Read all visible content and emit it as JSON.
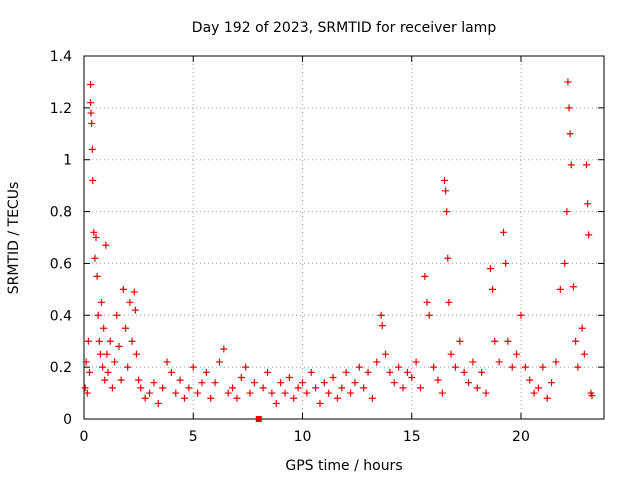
{
  "chart_data": {
    "type": "scatter",
    "title": "Day 192 of 2023, SRMTID for receiver lamp",
    "xlabel": "GPS time / hours",
    "ylabel": "SRMTID / TECUs",
    "xlim": [
      0,
      23.8
    ],
    "ylim": [
      0,
      1.4
    ],
    "x_ticks": [
      0,
      5,
      10,
      15,
      20
    ],
    "x_tick_labels": [
      "0",
      "5",
      "10",
      "15",
      "20"
    ],
    "y_ticks": [
      0,
      0.2,
      0.4,
      0.6,
      0.8,
      1.0,
      1.2,
      1.4
    ],
    "y_tick_labels": [
      "0",
      "0.2",
      "0.4",
      "0.6",
      "0.8",
      "1",
      "1.2",
      "1.4"
    ],
    "grid": true,
    "marker": "plus",
    "color": "#e60000",
    "series": [
      {
        "name": "SRMTID",
        "points": [
          [
            0.05,
            0.12
          ],
          [
            0.1,
            0.22
          ],
          [
            0.15,
            0.1
          ],
          [
            0.2,
            0.3
          ],
          [
            0.25,
            0.18
          ],
          [
            0.3,
            1.29
          ],
          [
            0.3,
            1.22
          ],
          [
            0.32,
            1.18
          ],
          [
            0.35,
            1.14
          ],
          [
            0.38,
            1.04
          ],
          [
            0.4,
            0.92
          ],
          [
            0.45,
            0.72
          ],
          [
            0.5,
            0.62
          ],
          [
            0.55,
            0.7
          ],
          [
            0.6,
            0.55
          ],
          [
            0.65,
            0.4
          ],
          [
            0.7,
            0.3
          ],
          [
            0.75,
            0.25
          ],
          [
            0.8,
            0.45
          ],
          [
            0.85,
            0.2
          ],
          [
            0.9,
            0.35
          ],
          [
            0.95,
            0.15
          ],
          [
            1.0,
            0.67
          ],
          [
            1.05,
            0.25
          ],
          [
            1.1,
            0.18
          ],
          [
            1.2,
            0.3
          ],
          [
            1.3,
            0.12
          ],
          [
            1.4,
            0.22
          ],
          [
            1.5,
            0.4
          ],
          [
            1.6,
            0.28
          ],
          [
            1.7,
            0.15
          ],
          [
            1.8,
            0.5
          ],
          [
            1.9,
            0.35
          ],
          [
            2.0,
            0.2
          ],
          [
            2.1,
            0.45
          ],
          [
            2.2,
            0.3
          ],
          [
            2.3,
            0.49
          ],
          [
            2.35,
            0.42
          ],
          [
            2.4,
            0.25
          ],
          [
            2.5,
            0.15
          ],
          [
            2.6,
            0.12
          ],
          [
            2.8,
            0.08
          ],
          [
            3.0,
            0.1
          ],
          [
            3.2,
            0.14
          ],
          [
            3.4,
            0.06
          ],
          [
            3.6,
            0.12
          ],
          [
            3.8,
            0.22
          ],
          [
            4.0,
            0.18
          ],
          [
            4.2,
            0.1
          ],
          [
            4.4,
            0.15
          ],
          [
            4.6,
            0.08
          ],
          [
            4.8,
            0.12
          ],
          [
            5.0,
            0.2
          ],
          [
            5.2,
            0.1
          ],
          [
            5.4,
            0.14
          ],
          [
            5.6,
            0.18
          ],
          [
            5.8,
            0.08
          ],
          [
            6.0,
            0.14
          ],
          [
            6.2,
            0.22
          ],
          [
            6.4,
            0.27
          ],
          [
            6.6,
            0.1
          ],
          [
            6.8,
            0.12
          ],
          [
            7.0,
            0.08
          ],
          [
            7.2,
            0.16
          ],
          [
            7.4,
            0.2
          ],
          [
            7.6,
            0.1
          ],
          [
            7.8,
            0.14
          ],
          [
            8.0,
            0.0
          ],
          [
            8.2,
            0.12
          ],
          [
            8.4,
            0.18
          ],
          [
            8.6,
            0.1
          ],
          [
            8.8,
            0.06
          ],
          [
            9.0,
            0.14
          ],
          [
            9.2,
            0.1
          ],
          [
            9.4,
            0.16
          ],
          [
            9.6,
            0.08
          ],
          [
            9.8,
            0.12
          ],
          [
            10.0,
            0.14
          ],
          [
            10.2,
            0.1
          ],
          [
            10.4,
            0.18
          ],
          [
            10.6,
            0.12
          ],
          [
            10.8,
            0.06
          ],
          [
            11.0,
            0.14
          ],
          [
            11.2,
            0.1
          ],
          [
            11.4,
            0.16
          ],
          [
            11.6,
            0.08
          ],
          [
            11.8,
            0.12
          ],
          [
            12.0,
            0.18
          ],
          [
            12.2,
            0.1
          ],
          [
            12.4,
            0.14
          ],
          [
            12.6,
            0.2
          ],
          [
            12.8,
            0.12
          ],
          [
            13.0,
            0.18
          ],
          [
            13.2,
            0.08
          ],
          [
            13.4,
            0.22
          ],
          [
            13.6,
            0.4
          ],
          [
            13.65,
            0.36
          ],
          [
            13.8,
            0.25
          ],
          [
            14.0,
            0.18
          ],
          [
            14.2,
            0.14
          ],
          [
            14.4,
            0.2
          ],
          [
            14.6,
            0.12
          ],
          [
            14.8,
            0.18
          ],
          [
            15.0,
            0.16
          ],
          [
            15.2,
            0.22
          ],
          [
            15.4,
            0.12
          ],
          [
            15.6,
            0.55
          ],
          [
            15.7,
            0.45
          ],
          [
            15.8,
            0.4
          ],
          [
            16.0,
            0.2
          ],
          [
            16.2,
            0.15
          ],
          [
            16.4,
            0.1
          ],
          [
            16.5,
            0.92
          ],
          [
            16.55,
            0.88
          ],
          [
            16.6,
            0.8
          ],
          [
            16.65,
            0.62
          ],
          [
            16.7,
            0.45
          ],
          [
            16.8,
            0.25
          ],
          [
            17.0,
            0.2
          ],
          [
            17.2,
            0.3
          ],
          [
            17.4,
            0.18
          ],
          [
            17.6,
            0.14
          ],
          [
            17.8,
            0.22
          ],
          [
            18.0,
            0.12
          ],
          [
            18.2,
            0.18
          ],
          [
            18.4,
            0.1
          ],
          [
            18.6,
            0.58
          ],
          [
            18.7,
            0.5
          ],
          [
            18.8,
            0.3
          ],
          [
            19.0,
            0.22
          ],
          [
            19.2,
            0.72
          ],
          [
            19.3,
            0.6
          ],
          [
            19.4,
            0.3
          ],
          [
            19.6,
            0.2
          ],
          [
            19.8,
            0.25
          ],
          [
            20.0,
            0.4
          ],
          [
            20.2,
            0.2
          ],
          [
            20.4,
            0.15
          ],
          [
            20.6,
            0.1
          ],
          [
            20.8,
            0.12
          ],
          [
            21.0,
            0.2
          ],
          [
            21.2,
            0.08
          ],
          [
            21.4,
            0.14
          ],
          [
            21.6,
            0.22
          ],
          [
            21.8,
            0.5
          ],
          [
            22.0,
            0.6
          ],
          [
            22.1,
            0.8
          ],
          [
            22.15,
            1.3
          ],
          [
            22.2,
            1.2
          ],
          [
            22.25,
            1.1
          ],
          [
            22.3,
            0.98
          ],
          [
            22.4,
            0.51
          ],
          [
            22.5,
            0.3
          ],
          [
            22.6,
            0.2
          ],
          [
            22.8,
            0.35
          ],
          [
            22.9,
            0.25
          ],
          [
            23.0,
            0.98
          ],
          [
            23.05,
            0.83
          ],
          [
            23.1,
            0.71
          ],
          [
            23.2,
            0.1
          ],
          [
            23.25,
            0.09
          ]
        ]
      }
    ]
  }
}
